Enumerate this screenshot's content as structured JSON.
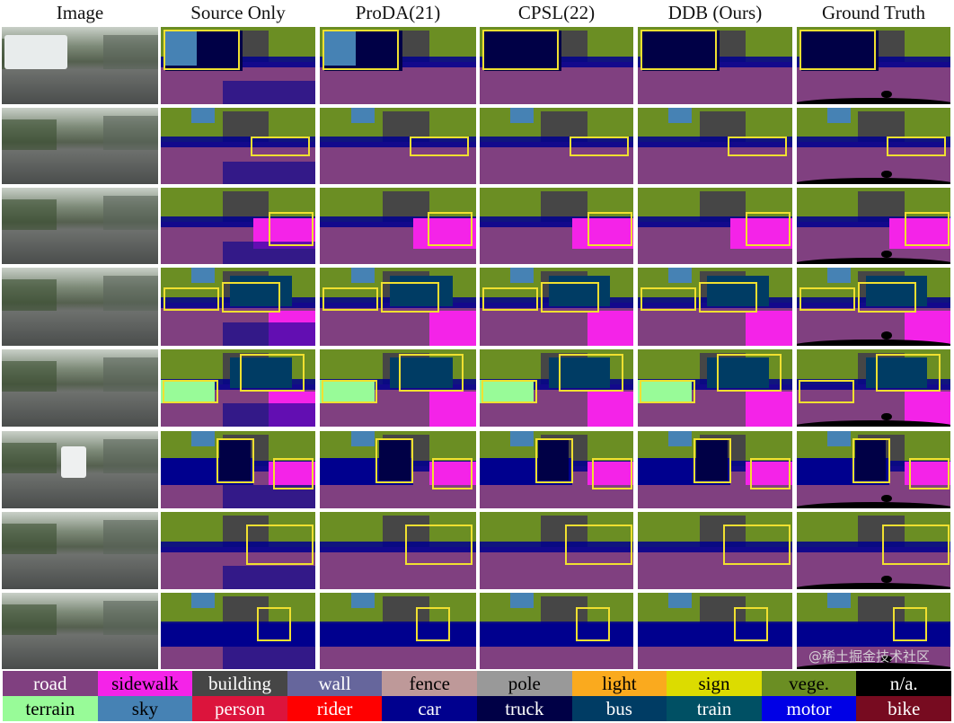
{
  "figure": {
    "columns": [
      "Image",
      "Source Only",
      "ProDA(21)",
      "CPSL(22)",
      "DDB (Ours)",
      "Ground Truth"
    ],
    "legend": [
      {
        "label": "road",
        "color": "#804080",
        "text": "#ffffff"
      },
      {
        "label": "sidewalk",
        "color": "#f423e8",
        "text": "#000000"
      },
      {
        "label": "building",
        "color": "#464646",
        "text": "#ffffff"
      },
      {
        "label": "wall",
        "color": "#66669c",
        "text": "#ffffff"
      },
      {
        "label": "fence",
        "color": "#be9999",
        "text": "#000000"
      },
      {
        "label": "pole",
        "color": "#999999",
        "text": "#000000"
      },
      {
        "label": "light",
        "color": "#faaa1e",
        "text": "#000000"
      },
      {
        "label": "sign",
        "color": "#dcdc00",
        "text": "#000000"
      },
      {
        "label": "vege.",
        "color": "#6b8e23",
        "text": "#000000"
      },
      {
        "label": "n/a.",
        "color": "#000000",
        "text": "#ffffff"
      },
      {
        "label": "terrain",
        "color": "#98fb98",
        "text": "#000000"
      },
      {
        "label": "sky",
        "color": "#4682b4",
        "text": "#000000"
      },
      {
        "label": "person",
        "color": "#dc143c",
        "text": "#ffffff"
      },
      {
        "label": "rider",
        "color": "#ff0000",
        "text": "#ffffff"
      },
      {
        "label": "car",
        "color": "#00008e",
        "text": "#ffffff"
      },
      {
        "label": "truck",
        "color": "#000046",
        "text": "#ffffff"
      },
      {
        "label": "bus",
        "color": "#003c64",
        "text": "#ffffff"
      },
      {
        "label": "train",
        "color": "#005064",
        "text": "#ffffff"
      },
      {
        "label": "motor",
        "color": "#0000e6",
        "text": "#ffffff"
      },
      {
        "label": "bike",
        "color": "#770b20",
        "text": "#ffffff"
      }
    ],
    "watermark": "@稀土掘金技术社区"
  }
}
